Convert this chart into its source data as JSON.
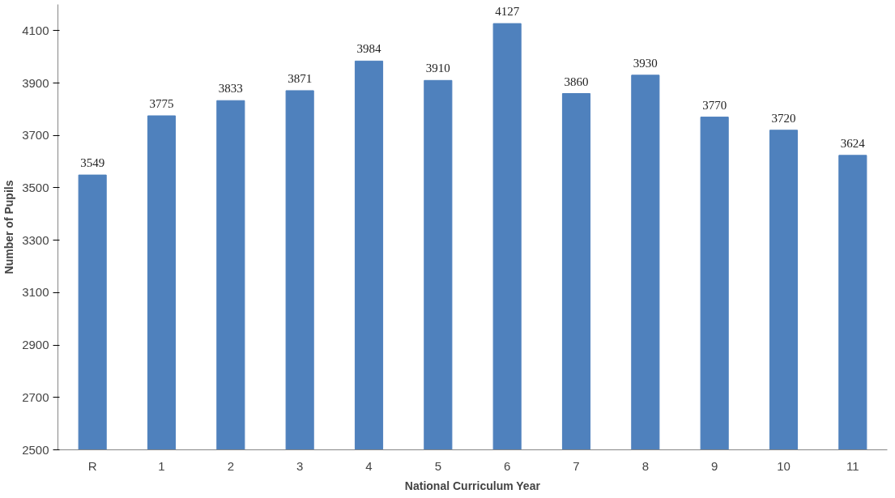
{
  "chart_data": {
    "type": "bar",
    "xlabel": "National Curriculum Year",
    "ylabel": "Number of Pupils",
    "categories": [
      "R",
      "1",
      "2",
      "3",
      "4",
      "5",
      "6",
      "7",
      "8",
      "9",
      "10",
      "11"
    ],
    "values": [
      3549,
      3775,
      3833,
      3871,
      3984,
      3910,
      4127,
      3860,
      3930,
      3770,
      3720,
      3624
    ],
    "color": "#4f81bd",
    "ylim": [
      2500,
      4200
    ],
    "yticks": [
      2500,
      2700,
      2900,
      3100,
      3300,
      3500,
      3700,
      3900,
      4100
    ],
    "grid": false,
    "data_labels": true
  }
}
